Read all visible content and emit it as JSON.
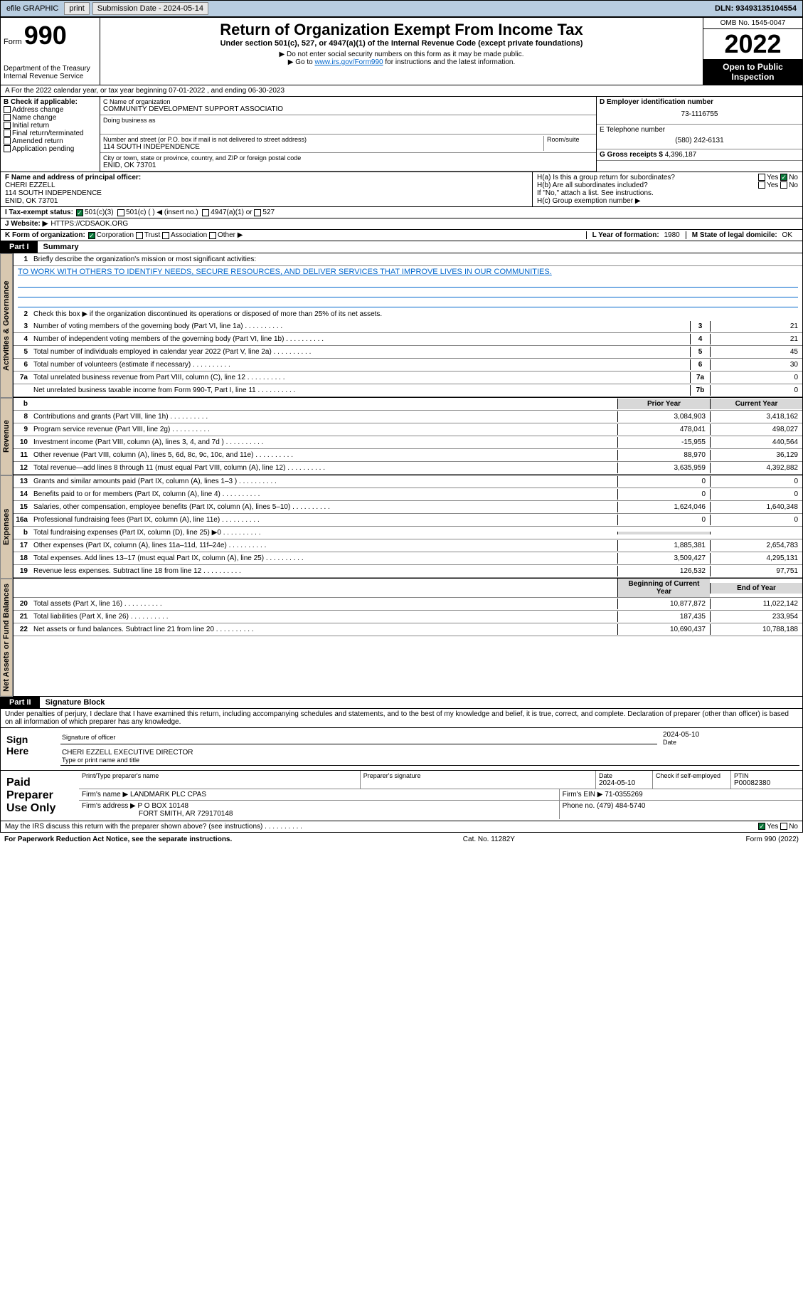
{
  "topbar": {
    "efile": "efile GRAPHIC",
    "print": "print",
    "sub_label": "Submission Date - 2024-05-14",
    "dln": "DLN: 93493135104554"
  },
  "header": {
    "form_label": "Form",
    "form_num": "990",
    "dept": "Department of the Treasury",
    "irs": "Internal Revenue Service",
    "title": "Return of Organization Exempt From Income Tax",
    "sub1": "Under section 501(c), 527, or 4947(a)(1) of the Internal Revenue Code (except private foundations)",
    "sub2": "▶ Do not enter social security numbers on this form as it may be made public.",
    "sub3_a": "▶ Go to ",
    "sub3_link": "www.irs.gov/Form990",
    "sub3_b": " for instructions and the latest information.",
    "omb": "OMB No. 1545-0047",
    "year": "2022",
    "inspect": "Open to Public Inspection"
  },
  "row_a": "A For the 2022 calendar year, or tax year beginning 07-01-2022   , and ending 06-30-2023",
  "sec_b": {
    "hdr": "B Check if applicable:",
    "items": [
      "Address change",
      "Name change",
      "Initial return",
      "Final return/terminated",
      "Amended return",
      "Application pending"
    ]
  },
  "sec_c": {
    "c_lbl": "C Name of organization",
    "c_name": "COMMUNITY DEVELOPMENT SUPPORT ASSOCIATIO",
    "dba": "Doing business as",
    "addr_lbl": "Number and street (or P.O. box if mail is not delivered to street address)",
    "room": "Room/suite",
    "addr": "114 SOUTH INDEPENDENCE",
    "city_lbl": "City or town, state or province, country, and ZIP or foreign postal code",
    "city": "ENID, OK  73701"
  },
  "sec_de": {
    "d_lbl": "D Employer identification number",
    "d_val": "73-1116755",
    "e_lbl": "E Telephone number",
    "e_val": "(580) 242-6131",
    "g_lbl": "G Gross receipts $",
    "g_val": "4,396,187"
  },
  "sec_f": {
    "lbl": "F Name and address of principal officer:",
    "name": "CHERI EZZELL",
    "addr": "114 SOUTH INDEPENDENCE",
    "city": "ENID, OK  73701"
  },
  "sec_h": {
    "ha": "H(a)  Is this a group return for subordinates?",
    "hb": "H(b)  Are all subordinates included?",
    "hb_note": "If \"No,\" attach a list. See instructions.",
    "hc": "H(c)  Group exemption number ▶",
    "yes": "Yes",
    "no": "No"
  },
  "row_i": {
    "lbl": "I   Tax-exempt status:",
    "i1": "501(c)(3)",
    "i2": "501(c) (  ) ◀ (insert no.)",
    "i3": "4947(a)(1) or",
    "i4": "527"
  },
  "row_j": {
    "lbl": "J   Website: ▶",
    "val": "HTTPS://CDSAOK.ORG"
  },
  "row_k": {
    "lbl": "K Form of organization:",
    "k1": "Corporation",
    "k2": "Trust",
    "k3": "Association",
    "k4": "Other ▶",
    "l_lbl": "L Year of formation:",
    "l_val": "1980",
    "m_lbl": "M State of legal domicile:",
    "m_val": "OK"
  },
  "part1": {
    "hdr": "Part I",
    "title": "Summary"
  },
  "summary": {
    "q1": "Briefly describe the organization's mission or most significant activities:",
    "mission": "TO WORK WITH OTHERS TO IDENTIFY NEEDS, SECURE RESOURCES, AND DELIVER SERVICES THAT IMPROVE LIVES IN OUR COMMUNITIES.",
    "q2": "Check this box ▶     if the organization discontinued its operations or disposed of more than 25% of its net assets.",
    "rows_ag": [
      {
        "n": "3",
        "t": "Number of voting members of the governing body (Part VI, line 1a)",
        "b": "3",
        "v": "21"
      },
      {
        "n": "4",
        "t": "Number of independent voting members of the governing body (Part VI, line 1b)",
        "b": "4",
        "v": "21"
      },
      {
        "n": "5",
        "t": "Total number of individuals employed in calendar year 2022 (Part V, line 2a)",
        "b": "5",
        "v": "45"
      },
      {
        "n": "6",
        "t": "Total number of volunteers (estimate if necessary)",
        "b": "6",
        "v": "30"
      },
      {
        "n": "7a",
        "t": "Total unrelated business revenue from Part VIII, column (C), line 12",
        "b": "7a",
        "v": "0"
      },
      {
        "n": "",
        "t": "Net unrelated business taxable income from Form 990-T, Part I, line 11",
        "b": "7b",
        "v": "0"
      }
    ],
    "col_prior": "Prior Year",
    "col_curr": "Current Year",
    "rows_rev": [
      {
        "n": "8",
        "t": "Contributions and grants (Part VIII, line 1h)",
        "p": "3,084,903",
        "c": "3,418,162"
      },
      {
        "n": "9",
        "t": "Program service revenue (Part VIII, line 2g)",
        "p": "478,041",
        "c": "498,027"
      },
      {
        "n": "10",
        "t": "Investment income (Part VIII, column (A), lines 3, 4, and 7d )",
        "p": "-15,955",
        "c": "440,564"
      },
      {
        "n": "11",
        "t": "Other revenue (Part VIII, column (A), lines 5, 6d, 8c, 9c, 10c, and 11e)",
        "p": "88,970",
        "c": "36,129"
      },
      {
        "n": "12",
        "t": "Total revenue—add lines 8 through 11 (must equal Part VIII, column (A), line 12)",
        "p": "3,635,959",
        "c": "4,392,882"
      }
    ],
    "rows_exp": [
      {
        "n": "13",
        "t": "Grants and similar amounts paid (Part IX, column (A), lines 1–3 )",
        "p": "0",
        "c": "0"
      },
      {
        "n": "14",
        "t": "Benefits paid to or for members (Part IX, column (A), line 4)",
        "p": "0",
        "c": "0"
      },
      {
        "n": "15",
        "t": "Salaries, other compensation, employee benefits (Part IX, column (A), lines 5–10)",
        "p": "1,624,046",
        "c": "1,640,348"
      },
      {
        "n": "16a",
        "t": "Professional fundraising fees (Part IX, column (A), line 11e)",
        "p": "0",
        "c": "0"
      },
      {
        "n": "b",
        "t": "Total fundraising expenses (Part IX, column (D), line 25) ▶0",
        "p": "",
        "c": "",
        "shade": true
      },
      {
        "n": "17",
        "t": "Other expenses (Part IX, column (A), lines 11a–11d, 11f–24e)",
        "p": "1,885,381",
        "c": "2,654,783"
      },
      {
        "n": "18",
        "t": "Total expenses. Add lines 13–17 (must equal Part IX, column (A), line 25)",
        "p": "3,509,427",
        "c": "4,295,131"
      },
      {
        "n": "19",
        "t": "Revenue less expenses. Subtract line 18 from line 12",
        "p": "126,532",
        "c": "97,751"
      }
    ],
    "col_beg": "Beginning of Current Year",
    "col_end": "End of Year",
    "rows_na": [
      {
        "n": "20",
        "t": "Total assets (Part X, line 16)",
        "p": "10,877,872",
        "c": "11,022,142"
      },
      {
        "n": "21",
        "t": "Total liabilities (Part X, line 26)",
        "p": "187,435",
        "c": "233,954"
      },
      {
        "n": "22",
        "t": "Net assets or fund balances. Subtract line 21 from line 20",
        "p": "10,690,437",
        "c": "10,788,188"
      }
    ]
  },
  "vtabs": {
    "ag": "Activities & Governance",
    "rev": "Revenue",
    "exp": "Expenses",
    "na": "Net Assets or Fund Balances"
  },
  "part2": {
    "hdr": "Part II",
    "title": "Signature Block"
  },
  "sig": {
    "penalty": "Under penalties of perjury, I declare that I have examined this return, including accompanying schedules and statements, and to the best of my knowledge and belief, it is true, correct, and complete. Declaration of preparer (other than officer) is based on all information of which preparer has any knowledge.",
    "sign_here": "Sign Here",
    "sig_officer": "Signature of officer",
    "date": "Date",
    "date_val": "2024-05-10",
    "name": "CHERI EZZELL  EXECUTIVE DIRECTOR",
    "name_lbl": "Type or print name and title",
    "paid": "Paid Preparer Use Only",
    "p_name_lbl": "Print/Type preparer's name",
    "p_sig_lbl": "Preparer's signature",
    "p_date_lbl": "Date",
    "p_date": "2024-05-10",
    "p_check": "Check      if self-employed",
    "ptin_lbl": "PTIN",
    "ptin": "P00082380",
    "firm_name_lbl": "Firm's name   ▶",
    "firm_name": "LANDMARK PLC CPAS",
    "firm_ein_lbl": "Firm's EIN ▶",
    "firm_ein": "71-0355269",
    "firm_addr_lbl": "Firm's address ▶",
    "firm_addr1": "P O BOX 10148",
    "firm_addr2": "FORT SMITH, AR  729170148",
    "phone_lbl": "Phone no.",
    "phone": "(479) 484-5740",
    "discuss": "May the IRS discuss this return with the preparer shown above? (see instructions)"
  },
  "footer": {
    "left": "For Paperwork Reduction Act Notice, see the separate instructions.",
    "mid": "Cat. No. 11282Y",
    "right": "Form 990 (2022)"
  }
}
